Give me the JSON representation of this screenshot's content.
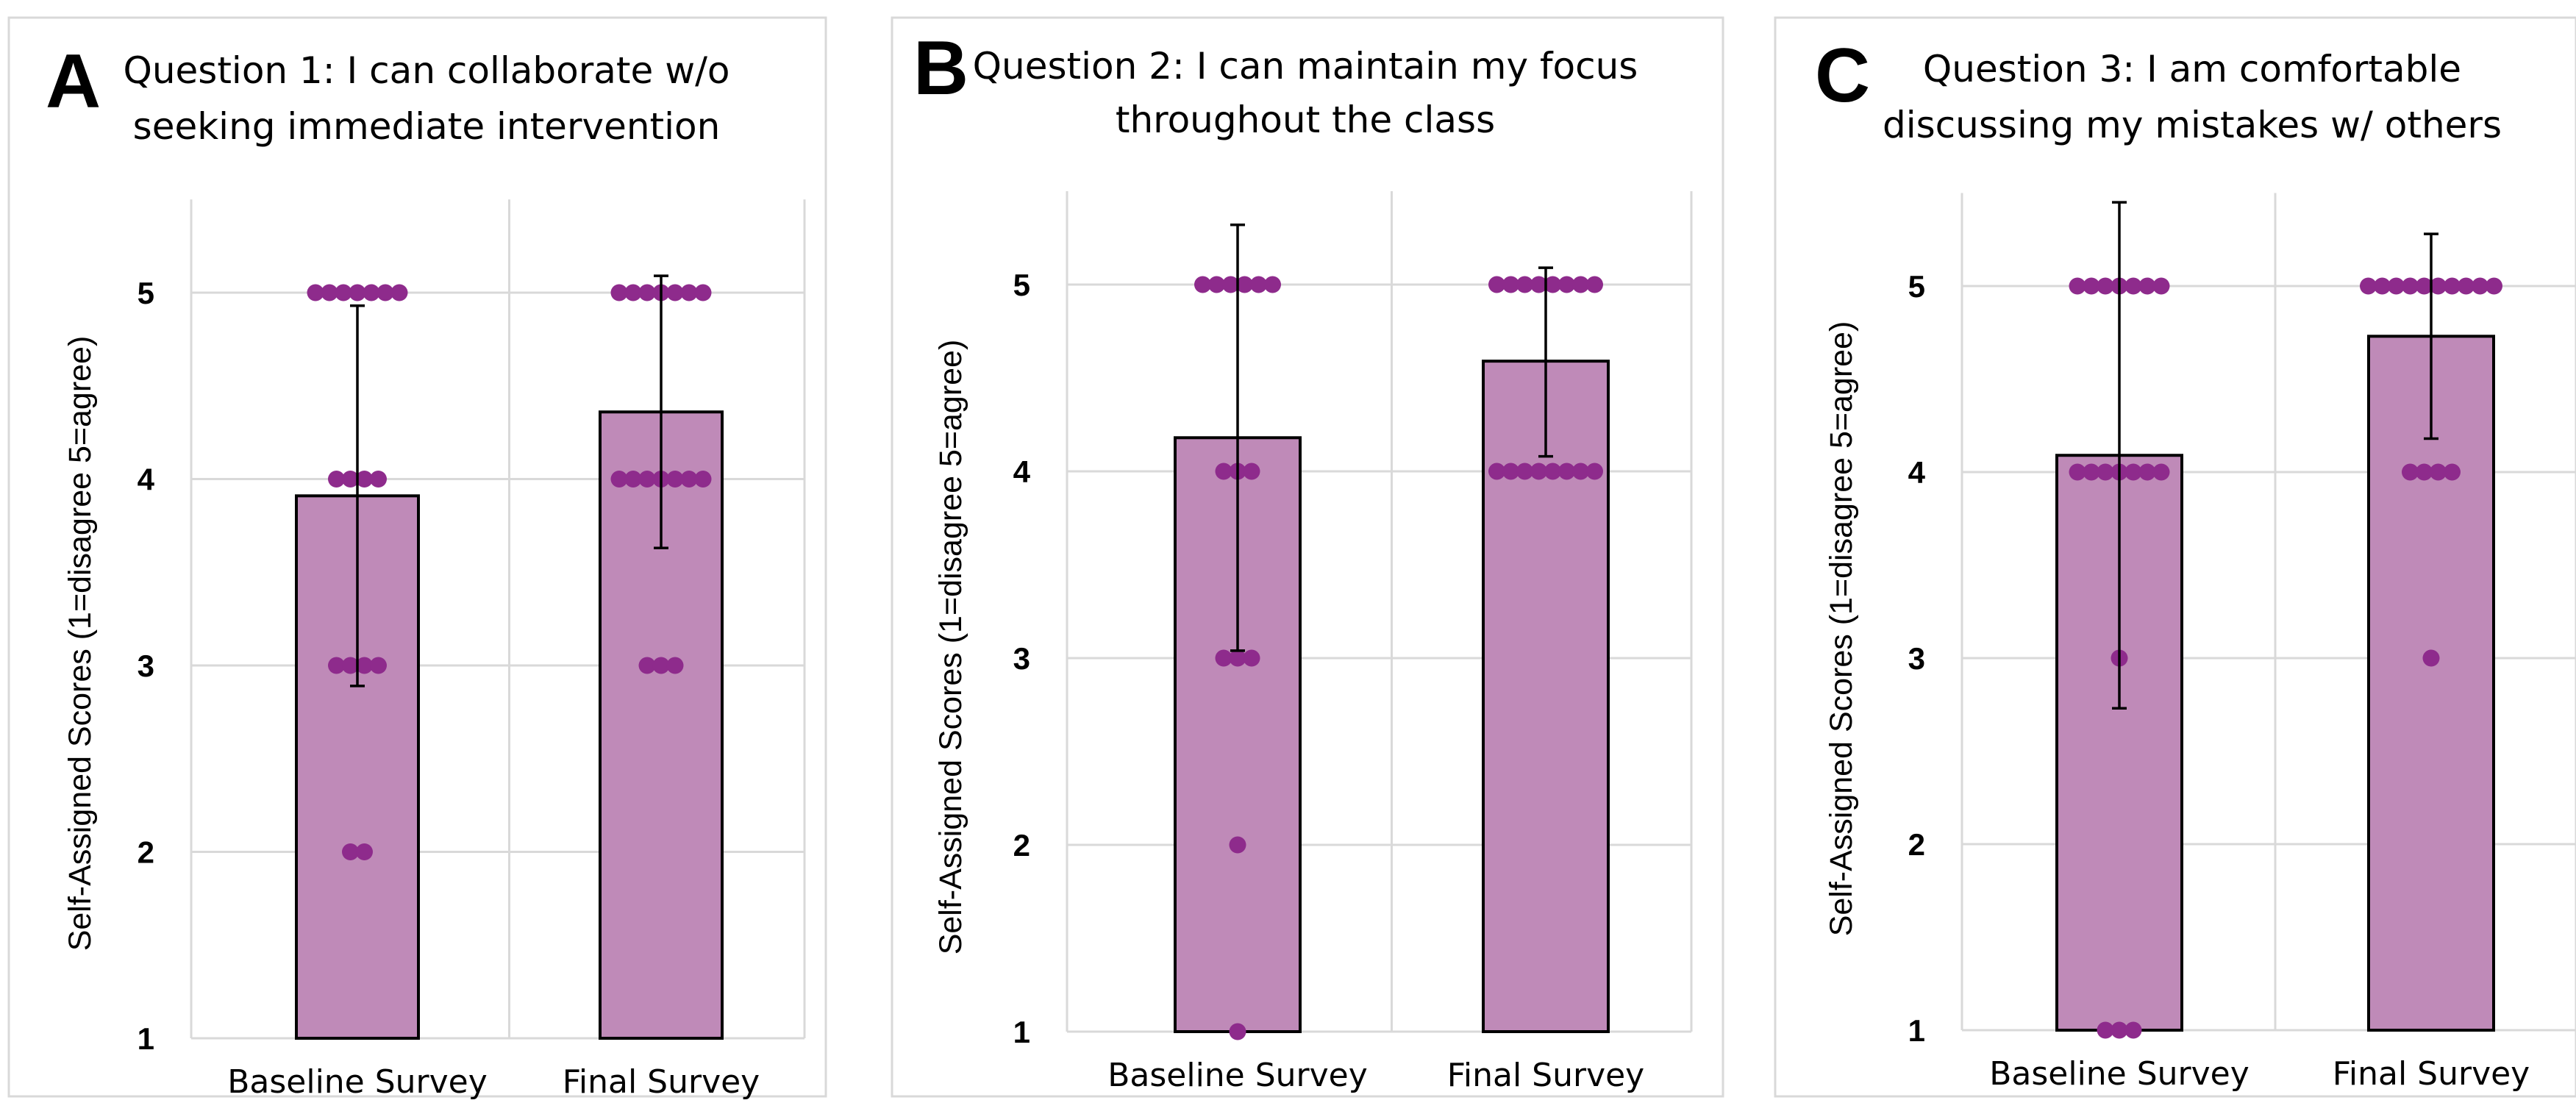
{
  "colors": {
    "bar": "#bf8ab8",
    "dot": "#8e2b8c",
    "grid": "#d9d9d9",
    "border": "#d9d9d9"
  },
  "chart_data": [
    {
      "type": "bar",
      "panel": "A",
      "title": [
        "Question 1: I can collaborate w/o",
        "seeking immediate intervention"
      ],
      "xlabel": "",
      "ylabel": "Self-Assigned Scores (1=disagree 5=agree)",
      "ylim": [
        1,
        5.5
      ],
      "yticks": [
        "1",
        "2",
        "3",
        "4",
        "5"
      ],
      "grid": true,
      "categories": [
        "Baseline Survey",
        "Final Survey"
      ],
      "values": [
        3.91,
        4.36
      ],
      "error_low": [
        2.89,
        3.63
      ],
      "error_high": [
        4.93,
        5.09
      ],
      "points": [
        [
          2,
          2,
          3,
          3,
          3,
          3,
          4,
          4,
          4,
          4,
          5,
          5,
          5,
          5,
          5,
          5,
          5
        ],
        [
          3,
          3,
          3,
          4,
          4,
          4,
          4,
          4,
          4,
          4,
          5,
          5,
          5,
          5,
          5,
          5,
          5
        ]
      ]
    },
    {
      "type": "bar",
      "panel": "B",
      "title": [
        "Question 2: I can maintain my focus",
        "throughout the class"
      ],
      "xlabel": "",
      "ylabel": "Self-Assigned Scores (1=disagree 5=agree)",
      "ylim": [
        1,
        5.5
      ],
      "yticks": [
        "1",
        "2",
        "3",
        "4",
        "5"
      ],
      "grid": true,
      "categories": [
        "Baseline Survey",
        "Final Survey"
      ],
      "values": [
        4.18,
        4.59
      ],
      "error_low": [
        3.04,
        4.08
      ],
      "error_high": [
        5.32,
        5.09
      ],
      "points": [
        [
          1,
          2,
          3,
          3,
          3,
          4,
          4,
          4,
          5,
          5,
          5,
          5,
          5,
          5
        ],
        [
          4,
          4,
          4,
          4,
          4,
          4,
          4,
          4,
          5,
          5,
          5,
          5,
          5,
          5,
          5,
          5
        ]
      ]
    },
    {
      "type": "bar",
      "panel": "C",
      "title": [
        "Question 3: I am comfortable",
        "discussing my mistakes w/ others"
      ],
      "xlabel": "",
      "ylabel": "Self-Assigned Scores (1=disagree 5=agree)",
      "ylim": [
        1,
        5.5
      ],
      "yticks": [
        "1",
        "2",
        "3",
        "4",
        "5"
      ],
      "grid": true,
      "categories": [
        "Baseline Survey",
        "Final Survey"
      ],
      "values": [
        4.09,
        4.73
      ],
      "error_low": [
        2.73,
        4.18
      ],
      "error_high": [
        5.45,
        5.28
      ],
      "points": [
        [
          1,
          1,
          1,
          3,
          4,
          4,
          4,
          4,
          4,
          4,
          4,
          5,
          5,
          5,
          5,
          5,
          5,
          5
        ],
        [
          3,
          4,
          4,
          4,
          4,
          5,
          5,
          5,
          5,
          5,
          5,
          5,
          5,
          5,
          5
        ]
      ]
    }
  ]
}
